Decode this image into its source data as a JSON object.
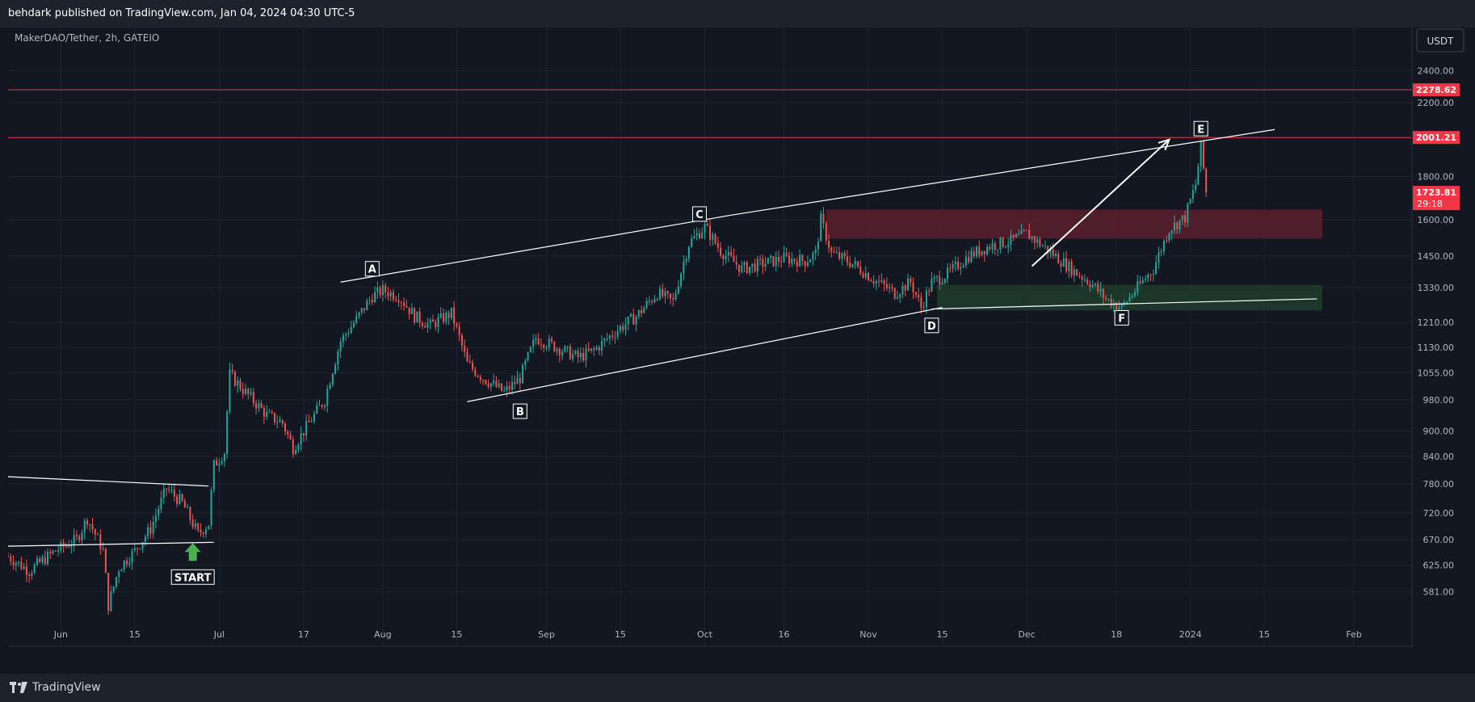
{
  "header": {
    "published_text": "behdark published on TradingView.com, Jan 04, 2024 04:30 UTC-5"
  },
  "footer": {
    "brand": "TradingView"
  },
  "colors": {
    "background": "#131722",
    "bar": "#1e222d",
    "grid": "#1f2430",
    "up": "#26a69a",
    "down": "#ef5350",
    "line": "#ffffff",
    "hline": "#f23645",
    "supply_zone": "#5c1f2b",
    "demand_zone": "#1f3d2a",
    "start_arrow": "#4caf50"
  },
  "chart_data": {
    "type": "candlestick",
    "title": "MakerDAO/Tether, 2h, GATEIO",
    "currency": "USDT",
    "y_scale": "log",
    "ylim": [
      540,
      2700
    ],
    "y_ticks": [
      "2400.00",
      "2200.00",
      "1800.00",
      "1600.00",
      "1450.00",
      "1330.00",
      "1210.00",
      "1130.00",
      "1055.00",
      "980.00",
      "900.00",
      "840.00",
      "780.00",
      "720.00",
      "670.00",
      "625.00",
      "581.00"
    ],
    "x_ticks": [
      {
        "label": "Jun",
        "date": "2023-06-01"
      },
      {
        "label": "15",
        "date": "2023-06-15"
      },
      {
        "label": "Jul",
        "date": "2023-07-01"
      },
      {
        "label": "17",
        "date": "2023-07-17"
      },
      {
        "label": "Aug",
        "date": "2023-08-01"
      },
      {
        "label": "15",
        "date": "2023-08-15"
      },
      {
        "label": "Sep",
        "date": "2023-09-01"
      },
      {
        "label": "15",
        "date": "2023-09-15"
      },
      {
        "label": "Oct",
        "date": "2023-10-01"
      },
      {
        "label": "16",
        "date": "2023-10-16"
      },
      {
        "label": "Nov",
        "date": "2023-11-01"
      },
      {
        "label": "15",
        "date": "2023-11-15"
      },
      {
        "label": "Dec",
        "date": "2023-12-01"
      },
      {
        "label": "18",
        "date": "2023-12-18"
      },
      {
        "label": "2024",
        "date": "2024-01-01"
      },
      {
        "label": "15",
        "date": "2024-01-15"
      },
      {
        "label": "Feb",
        "date": "2024-02-01"
      }
    ],
    "xlim": [
      "2023-05-22",
      "2024-02-12"
    ],
    "price_series": [
      [
        "2023-05-22",
        640
      ],
      [
        "2023-05-26",
        615
      ],
      [
        "2023-05-31",
        650
      ],
      [
        "2023-06-04",
        670
      ],
      [
        "2023-06-06",
        710
      ],
      [
        "2023-06-09",
        650
      ],
      [
        "2023-06-10",
        560
      ],
      [
        "2023-06-12",
        620
      ],
      [
        "2023-06-15",
        650
      ],
      [
        "2023-06-18",
        690
      ],
      [
        "2023-06-21",
        770
      ],
      [
        "2023-06-24",
        740
      ],
      [
        "2023-06-27",
        680
      ],
      [
        "2023-06-29",
        700
      ],
      [
        "2023-06-30",
        820
      ],
      [
        "2023-07-02",
        850
      ],
      [
        "2023-07-03",
        1050
      ],
      [
        "2023-07-06",
        1000
      ],
      [
        "2023-07-10",
        940
      ],
      [
        "2023-07-13",
        920
      ],
      [
        "2023-07-15",
        860
      ],
      [
        "2023-07-18",
        920
      ],
      [
        "2023-07-21",
        980
      ],
      [
        "2023-07-24",
        1150
      ],
      [
        "2023-07-27",
        1220
      ],
      [
        "2023-07-30",
        1300
      ],
      [
        "2023-08-01",
        1320
      ],
      [
        "2023-08-04",
        1300
      ],
      [
        "2023-08-07",
        1230
      ],
      [
        "2023-08-10",
        1200
      ],
      [
        "2023-08-14",
        1240
      ],
      [
        "2023-08-17",
        1080
      ],
      [
        "2023-08-20",
        1040
      ],
      [
        "2023-08-24",
        1000
      ],
      [
        "2023-08-27",
        1040
      ],
      [
        "2023-08-30",
        1160
      ],
      [
        "2023-09-03",
        1130
      ],
      [
        "2023-09-07",
        1100
      ],
      [
        "2023-09-10",
        1120
      ],
      [
        "2023-09-14",
        1180
      ],
      [
        "2023-09-18",
        1230
      ],
      [
        "2023-09-22",
        1310
      ],
      [
        "2023-09-25",
        1280
      ],
      [
        "2023-09-28",
        1500
      ],
      [
        "2023-10-01",
        1570
      ],
      [
        "2023-10-04",
        1470
      ],
      [
        "2023-10-08",
        1400
      ],
      [
        "2023-10-12",
        1420
      ],
      [
        "2023-10-16",
        1440
      ],
      [
        "2023-10-20",
        1430
      ],
      [
        "2023-10-22",
        1460
      ],
      [
        "2023-10-23",
        1600
      ],
      [
        "2023-10-25",
        1460
      ],
      [
        "2023-10-29",
        1420
      ],
      [
        "2023-11-02",
        1360
      ],
      [
        "2023-11-06",
        1310
      ],
      [
        "2023-11-09",
        1350
      ],
      [
        "2023-11-11",
        1260
      ],
      [
        "2023-11-13",
        1350
      ],
      [
        "2023-11-16",
        1380
      ],
      [
        "2023-11-20",
        1450
      ],
      [
        "2023-11-24",
        1490
      ],
      [
        "2023-11-28",
        1510
      ],
      [
        "2023-12-01",
        1540
      ],
      [
        "2023-12-04",
        1490
      ],
      [
        "2023-12-07",
        1440
      ],
      [
        "2023-12-10",
        1390
      ],
      [
        "2023-12-13",
        1350
      ],
      [
        "2023-12-16",
        1290
      ],
      [
        "2023-12-19",
        1260
      ],
      [
        "2023-12-22",
        1330
      ],
      [
        "2023-12-25",
        1400
      ],
      [
        "2023-12-28",
        1560
      ],
      [
        "2023-12-31",
        1610
      ],
      [
        "2024-01-02",
        1760
      ],
      [
        "2024-01-03",
        1950
      ],
      [
        "2024-01-04",
        1723.81
      ]
    ],
    "wave_labels": [
      {
        "label": "A",
        "date": "2023-07-30",
        "price": 1400
      },
      {
        "label": "B",
        "date": "2023-08-27",
        "price": 950
      },
      {
        "label": "C",
        "date": "2023-09-30",
        "price": 1625
      },
      {
        "label": "D",
        "date": "2023-11-13",
        "price": 1200
      },
      {
        "label": "E",
        "date": "2024-01-03",
        "price": 2050
      },
      {
        "label": "F",
        "date": "2023-12-19",
        "price": 1225
      },
      {
        "label": "START",
        "date": "2023-06-26",
        "price": 605
      }
    ],
    "price_labels": [
      {
        "text": "2278.62",
        "price": 2278.62,
        "color": "#f23645"
      },
      {
        "text": "2001.21",
        "price": 2001.21,
        "color": "#f23645"
      },
      {
        "text": "1723.81",
        "price": 1723.81,
        "color": "#f23645",
        "countdown": "29:18"
      }
    ],
    "horizontal_lines": [
      2278.62,
      2001.21
    ],
    "zones": [
      {
        "type": "supply",
        "from": "2023-10-24",
        "to": "2024-01-26",
        "top": 1645,
        "bottom": 1520
      },
      {
        "type": "demand",
        "from": "2023-11-14",
        "to": "2024-01-26",
        "top": 1340,
        "bottom": 1250
      }
    ],
    "trendlines": [
      {
        "from": [
          "2023-07-24",
          1350
        ],
        "to": [
          "2023-10-06",
          1620
        ]
      },
      {
        "from": [
          "2023-10-06",
          1620
        ],
        "to": [
          "2024-01-17",
          2045
        ]
      },
      {
        "from": [
          "2023-08-17",
          975
        ],
        "to": [
          "2023-11-15",
          1260
        ]
      },
      {
        "from": [
          "2023-11-13",
          1255
        ],
        "to": [
          "2024-01-25",
          1290
        ]
      },
      {
        "from": [
          "2023-05-22",
          1260
        ],
        "to": [
          "2023-05-22",
          1260
        ]
      },
      {
        "from": [
          "2023-05-22",
          795
        ],
        "to": [
          "2023-06-29",
          775
        ]
      },
      {
        "from": [
          "2023-05-22",
          658
        ],
        "to": [
          "2023-06-30",
          665
        ]
      }
    ],
    "arrow": {
      "from": [
        "2023-12-02",
        1410
      ],
      "to": [
        "2023-12-28",
        1990
      ]
    }
  }
}
